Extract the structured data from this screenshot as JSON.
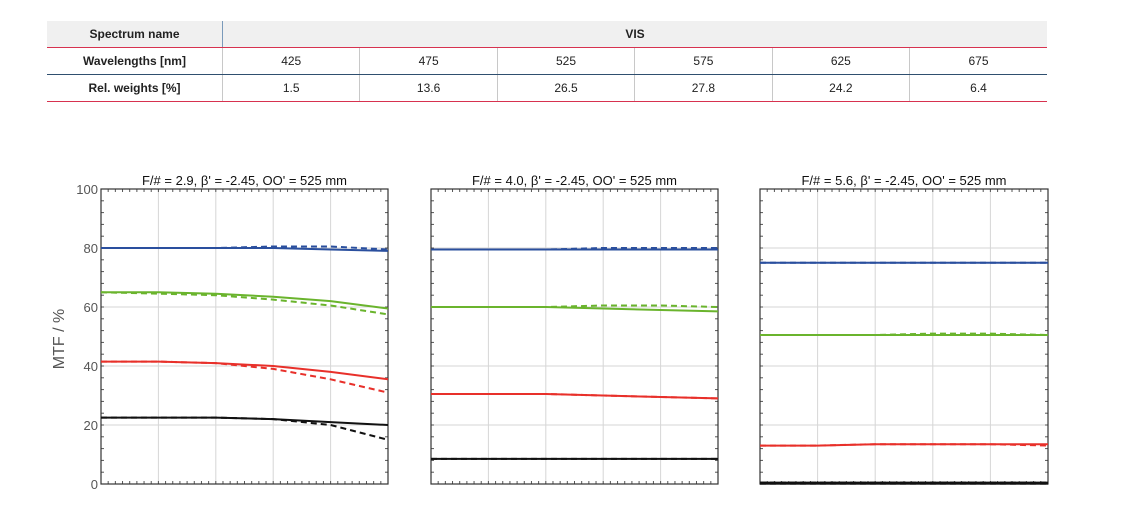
{
  "table": {
    "spectrum_label": "Spectrum name",
    "spectrum_value": "VIS",
    "wavelength_label": "Wavelengths [nm]",
    "wavelengths": [
      "425",
      "475",
      "525",
      "575",
      "625",
      "675"
    ],
    "weights_label": "Rel. weights [%]",
    "weights": [
      "1.5",
      "13.6",
      "26.5",
      "27.8",
      "24.2",
      "6.4"
    ]
  },
  "y_axis_label": "MTF / %",
  "colors": {
    "blue": "#2a4f9e",
    "green": "#6ab42d",
    "red": "#e8302a",
    "black": "#111111"
  },
  "chart_data": [
    {
      "type": "line",
      "title": "F/# = 2.9, β' = -2.45, OO' = 525 mm",
      "ylim": [
        0,
        100
      ],
      "yticks": [
        "0",
        "20",
        "40",
        "60",
        "80",
        "100"
      ],
      "grid": true,
      "x": [
        0,
        0.2,
        0.4,
        0.6,
        0.8,
        1.0
      ],
      "series": [
        {
          "color": "blue",
          "style": "solid",
          "values": [
            80,
            80,
            80,
            80,
            79.5,
            79
          ]
        },
        {
          "color": "blue",
          "style": "dashed",
          "values": [
            80,
            80,
            80,
            80.5,
            80.5,
            79.5
          ]
        },
        {
          "color": "green",
          "style": "solid",
          "values": [
            65,
            65,
            64.5,
            63.5,
            62,
            59.5
          ]
        },
        {
          "color": "green",
          "style": "dashed",
          "values": [
            65,
            64.5,
            64,
            62.5,
            60.5,
            57.5
          ]
        },
        {
          "color": "red",
          "style": "solid",
          "values": [
            41.5,
            41.5,
            41,
            40,
            38,
            35.5
          ]
        },
        {
          "color": "red",
          "style": "dashed",
          "values": [
            41.5,
            41.5,
            41,
            39,
            35.5,
            31
          ]
        },
        {
          "color": "black",
          "style": "solid",
          "values": [
            22.5,
            22.5,
            22.5,
            22,
            21,
            20
          ]
        },
        {
          "color": "black",
          "style": "dashed",
          "values": [
            22.5,
            22.5,
            22.5,
            22,
            20,
            15
          ]
        }
      ]
    },
    {
      "type": "line",
      "title": "F/# = 4.0, β' = -2.45, OO' = 525 mm",
      "ylim": [
        0,
        100
      ],
      "grid": true,
      "x": [
        0,
        0.2,
        0.4,
        0.6,
        0.8,
        1.0
      ],
      "series": [
        {
          "color": "blue",
          "style": "solid",
          "values": [
            79.5,
            79.5,
            79.5,
            79.5,
            79.5,
            79.5
          ]
        },
        {
          "color": "blue",
          "style": "dashed",
          "values": [
            79.5,
            79.5,
            79.5,
            80,
            80,
            80
          ]
        },
        {
          "color": "green",
          "style": "solid",
          "values": [
            60,
            60,
            60,
            59.5,
            59,
            58.5
          ]
        },
        {
          "color": "green",
          "style": "dashed",
          "values": [
            60,
            60,
            60,
            60.5,
            60.5,
            60
          ]
        },
        {
          "color": "red",
          "style": "solid",
          "values": [
            30.5,
            30.5,
            30.5,
            30,
            29.5,
            29
          ]
        },
        {
          "color": "red",
          "style": "dashed",
          "values": [
            30.5,
            30.5,
            30.5,
            30,
            29.5,
            29
          ]
        },
        {
          "color": "black",
          "style": "solid",
          "values": [
            8.5,
            8.5,
            8.5,
            8.5,
            8.5,
            8.5
          ]
        },
        {
          "color": "black",
          "style": "dashed",
          "values": [
            8.5,
            8.5,
            8.5,
            8.5,
            8.5,
            8.5
          ]
        }
      ]
    },
    {
      "type": "line",
      "title": "F/# = 5.6, β' = -2.45, OO' = 525 mm",
      "ylim": [
        0,
        100
      ],
      "grid": true,
      "x": [
        0,
        0.2,
        0.4,
        0.6,
        0.8,
        1.0
      ],
      "series": [
        {
          "color": "blue",
          "style": "solid",
          "values": [
            75,
            75,
            75,
            75,
            75,
            75
          ]
        },
        {
          "color": "blue",
          "style": "dashed",
          "values": [
            75,
            75,
            75,
            75,
            75,
            75
          ]
        },
        {
          "color": "green",
          "style": "solid",
          "values": [
            50.5,
            50.5,
            50.5,
            50.5,
            50.5,
            50.5
          ]
        },
        {
          "color": "green",
          "style": "dashed",
          "values": [
            50.5,
            50.5,
            50.5,
            51,
            51,
            50.5
          ]
        },
        {
          "color": "red",
          "style": "solid",
          "values": [
            13,
            13,
            13.5,
            13.5,
            13.5,
            13.5
          ]
        },
        {
          "color": "red",
          "style": "dashed",
          "values": [
            13,
            13,
            13.5,
            13.5,
            13.5,
            13
          ]
        },
        {
          "color": "black",
          "style": "solid",
          "values": [
            0.3,
            0.3,
            0.3,
            0.3,
            0.3,
            0.3
          ]
        },
        {
          "color": "black",
          "style": "dashed",
          "values": [
            0.3,
            0.3,
            0.3,
            0.3,
            0.3,
            0.3
          ]
        }
      ]
    }
  ]
}
